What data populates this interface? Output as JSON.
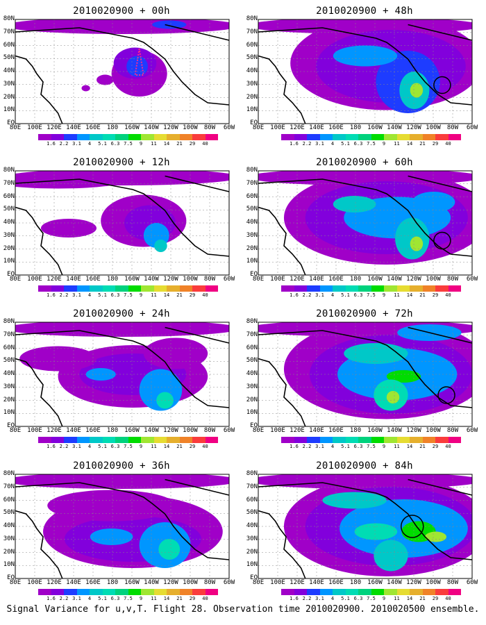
{
  "caption": "Signal Variance for u,v,T. Flight 28. Observation time 2010020900. 2010020500 ensemble.",
  "lat_labels": [
    "80N",
    "70N",
    "60N",
    "50N",
    "40N",
    "30N",
    "20N",
    "10N",
    "EQ"
  ],
  "lon_labels": [
    "80E",
    "100E",
    "120E",
    "140E",
    "160E",
    "180",
    "160W",
    "140W",
    "120W",
    "100W",
    "80W",
    "60W"
  ],
  "colorbar": {
    "levels": [
      "1.6",
      "2.2",
      "3.1",
      "4",
      "5.1",
      "6.3",
      "7.5",
      "9",
      "11",
      "14",
      "21",
      "29",
      "40"
    ],
    "colors": [
      "#a000c8",
      "#8200dc",
      "#1e3cff",
      "#0096ff",
      "#00c8c8",
      "#00dcb4",
      "#00d27d",
      "#00dc00",
      "#a0e632",
      "#e6dc32",
      "#e6af2d",
      "#f08228",
      "#fa3c3c",
      "#f00082"
    ]
  },
  "panels": [
    {
      "title": "2010020900 + 00h"
    },
    {
      "title": "2010020900 + 12h"
    },
    {
      "title": "2010020900 + 24h"
    },
    {
      "title": "2010020900 + 36h"
    },
    {
      "title": "2010020900 + 48h"
    },
    {
      "title": "2010020900 + 60h"
    },
    {
      "title": "2010020900 + 72h"
    },
    {
      "title": "2010020900 + 84h"
    }
  ],
  "chart_data": {
    "type": "heatmap",
    "title": "Signal Variance for u,v,T. Flight 28. Observation time 2010020900. 2010020500 ensemble.",
    "ylim": [
      0,
      80
    ],
    "xlim_labels": [
      "80E",
      "60W"
    ],
    "panel_titles": [
      "2010020900 + 00h",
      "2010020900 + 12h",
      "2010020900 + 24h",
      "2010020900 + 36h",
      "2010020900 + 48h",
      "2010020900 + 60h",
      "2010020900 + 72h",
      "2010020900 + 84h"
    ],
    "levels": [
      1.6,
      2.2,
      3.1,
      4,
      5.1,
      6.3,
      7.5,
      9,
      11,
      14,
      21,
      29,
      40
    ],
    "grid": true
  }
}
